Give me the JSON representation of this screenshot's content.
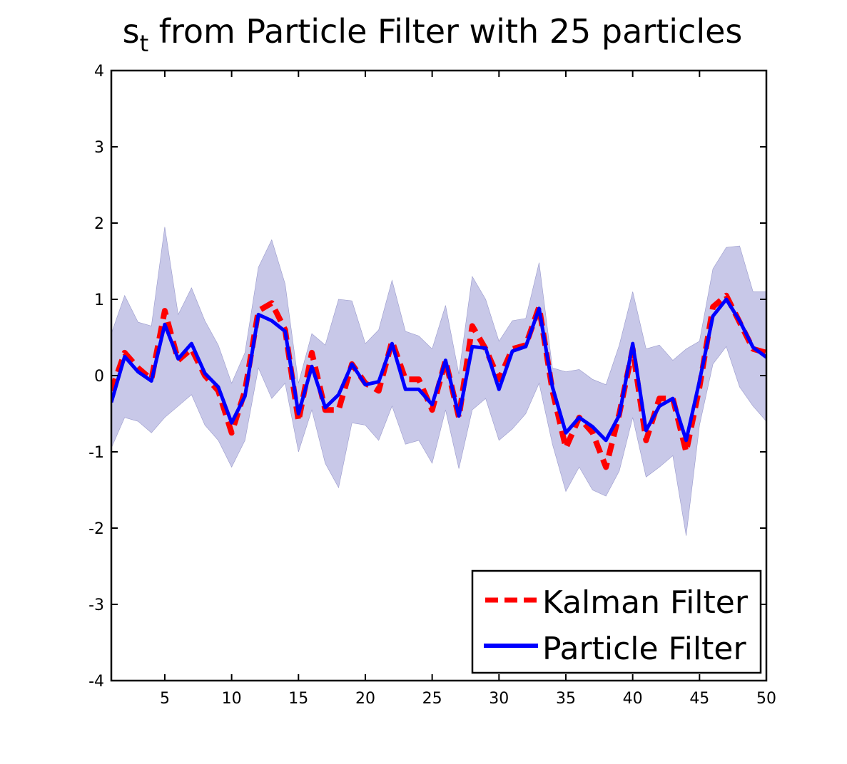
{
  "chart_data": {
    "type": "line",
    "title": {
      "symbol": "s",
      "subscript": "t",
      "rest": " from Particle Filter with 25 particles"
    },
    "xlabel": "",
    "ylabel": "",
    "xlim": [
      1,
      50
    ],
    "ylim": [
      -4,
      4
    ],
    "xticks": [
      5,
      10,
      15,
      20,
      25,
      30,
      35,
      40,
      45,
      50
    ],
    "yticks": [
      -4,
      -3,
      -2,
      -1,
      0,
      1,
      2,
      3,
      4
    ],
    "grid": false,
    "legend_position": "bottom-right",
    "x": [
      1,
      2,
      3,
      4,
      5,
      6,
      7,
      8,
      9,
      10,
      11,
      12,
      13,
      14,
      15,
      16,
      17,
      18,
      19,
      20,
      21,
      22,
      23,
      24,
      25,
      26,
      27,
      28,
      29,
      30,
      31,
      32,
      33,
      34,
      35,
      36,
      37,
      38,
      39,
      40,
      41,
      42,
      43,
      44,
      45,
      46,
      47,
      48,
      49,
      50
    ],
    "series": [
      {
        "name": "Kalman Filter",
        "color": "#ff0000",
        "style": "dashed",
        "values": [
          -0.2,
          0.3,
          0.1,
          -0.05,
          0.85,
          0.2,
          0.35,
          0.0,
          -0.2,
          -0.75,
          -0.2,
          0.85,
          0.95,
          0.6,
          -0.6,
          0.3,
          -0.45,
          -0.45,
          0.15,
          -0.1,
          -0.2,
          0.45,
          -0.05,
          -0.05,
          -0.45,
          0.2,
          -0.55,
          0.65,
          0.35,
          -0.05,
          0.35,
          0.4,
          0.9,
          -0.2,
          -0.95,
          -0.55,
          -0.75,
          -1.2,
          -0.5,
          0.35,
          -0.85,
          -0.3,
          -0.3,
          -1.0,
          -0.15,
          0.9,
          1.05,
          0.7,
          0.35,
          0.3
        ]
      },
      {
        "name": "Particle Filter",
        "color": "#0000ff",
        "style": "solid",
        "values": [
          -0.35,
          0.25,
          0.05,
          -0.07,
          0.67,
          0.22,
          0.42,
          0.03,
          -0.15,
          -0.62,
          -0.27,
          0.8,
          0.72,
          0.58,
          -0.5,
          0.12,
          -0.42,
          -0.25,
          0.15,
          -0.12,
          -0.08,
          0.42,
          -0.18,
          -0.18,
          -0.38,
          0.2,
          -0.53,
          0.38,
          0.36,
          -0.18,
          0.32,
          0.38,
          0.88,
          -0.15,
          -0.75,
          -0.55,
          -0.67,
          -0.85,
          -0.52,
          0.42,
          -0.72,
          -0.4,
          -0.3,
          -0.85,
          -0.07,
          0.78,
          1.0,
          0.72,
          0.37,
          0.24
        ]
      }
    ],
    "band": {
      "color": "#c8c8e8",
      "upper": [
        0.55,
        1.05,
        0.7,
        0.65,
        1.95,
        0.8,
        1.15,
        0.72,
        0.4,
        -0.1,
        0.3,
        1.42,
        1.78,
        1.2,
        -0.1,
        0.55,
        0.4,
        1.0,
        0.98,
        0.42,
        0.6,
        1.25,
        0.58,
        0.52,
        0.35,
        0.92,
        0.02,
        1.3,
        1.0,
        0.45,
        0.72,
        0.75,
        1.48,
        0.1,
        0.05,
        0.08,
        -0.05,
        -0.12,
        0.4,
        1.1,
        0.35,
        0.4,
        0.2,
        0.35,
        0.45,
        1.4,
        1.68,
        1.7,
        1.1,
        1.1
      ],
      "lower": [
        -0.95,
        -0.55,
        -0.6,
        -0.75,
        -0.55,
        -0.4,
        -0.25,
        -0.65,
        -0.85,
        -1.2,
        -0.85,
        0.1,
        -0.3,
        -0.1,
        -1.0,
        -0.45,
        -1.15,
        -1.47,
        -0.62,
        -0.65,
        -0.85,
        -0.4,
        -0.9,
        -0.85,
        -1.15,
        -0.45,
        -1.22,
        -0.45,
        -0.3,
        -0.85,
        -0.7,
        -0.5,
        -0.1,
        -0.9,
        -1.52,
        -1.2,
        -1.5,
        -1.58,
        -1.25,
        -0.55,
        -1.33,
        -1.2,
        -1.05,
        -2.1,
        -0.65,
        0.15,
        0.38,
        -0.15,
        -0.4,
        -0.6
      ]
    }
  }
}
